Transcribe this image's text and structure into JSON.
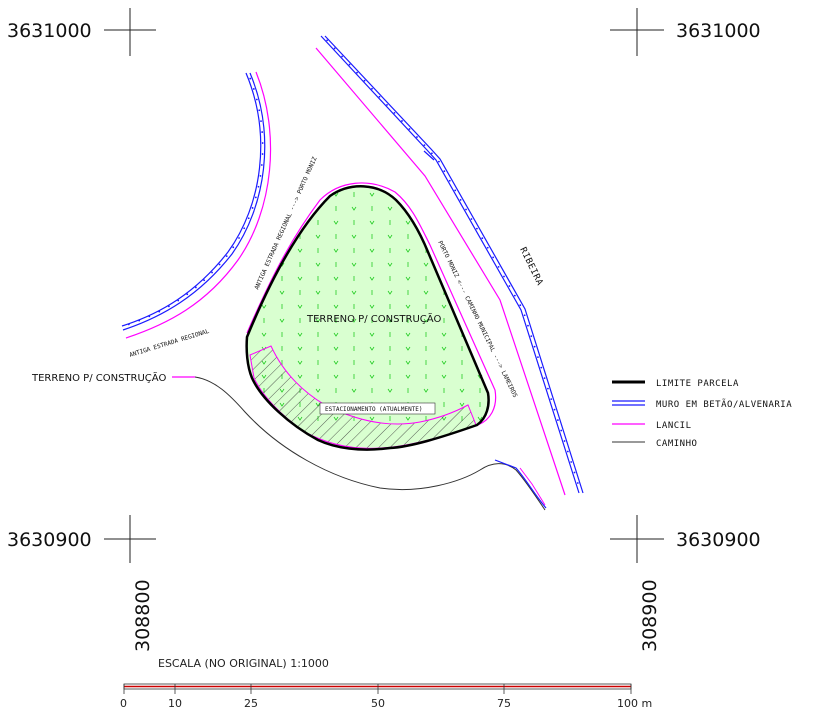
{
  "coords": {
    "top_left": "3631000",
    "top_right": "3631000",
    "bottom_left": "3630900",
    "bottom_right": "3630900",
    "x_left": "308800",
    "x_right": "308900"
  },
  "map_labels": {
    "parcel_label": "TERRENO P/ CONSTRUÇÃO",
    "left_label": "TERRENO P/ CONSTRUÇÃO",
    "parking_label": "ESTACIONAMENTO (ATUALMENTE)",
    "road_regional_1": "ANTIGA ESTRADA REGIONAL ---> PORTO MONIZ",
    "road_regional_2": "ANTIGA ESTRADA REGIONAL",
    "road_municipal": "PORTO MONIZ <--- CAMINHO MUNICIPAL ---> LAMEIROS",
    "ribeira": "RIBEIRA"
  },
  "legend": {
    "items": [
      {
        "label": "LIMITE PARCELA",
        "color": "#000000"
      },
      {
        "label": "MURO EM BETÃO/ALVENARIA",
        "color": "#1a1aff"
      },
      {
        "label": "LANCIL",
        "color": "#ff00ff"
      },
      {
        "label": "CAMINHO",
        "color": "#333333"
      }
    ]
  },
  "scale": {
    "title": "ESCALA (NO ORIGINAL) 1:1000",
    "ticks": [
      "0",
      "10",
      "25",
      "50",
      "75",
      "100 m"
    ]
  },
  "colors": {
    "parcel_fill": "#d9ffd0",
    "grass_marks": "#22cc22",
    "scale_red": "#cc0000"
  }
}
